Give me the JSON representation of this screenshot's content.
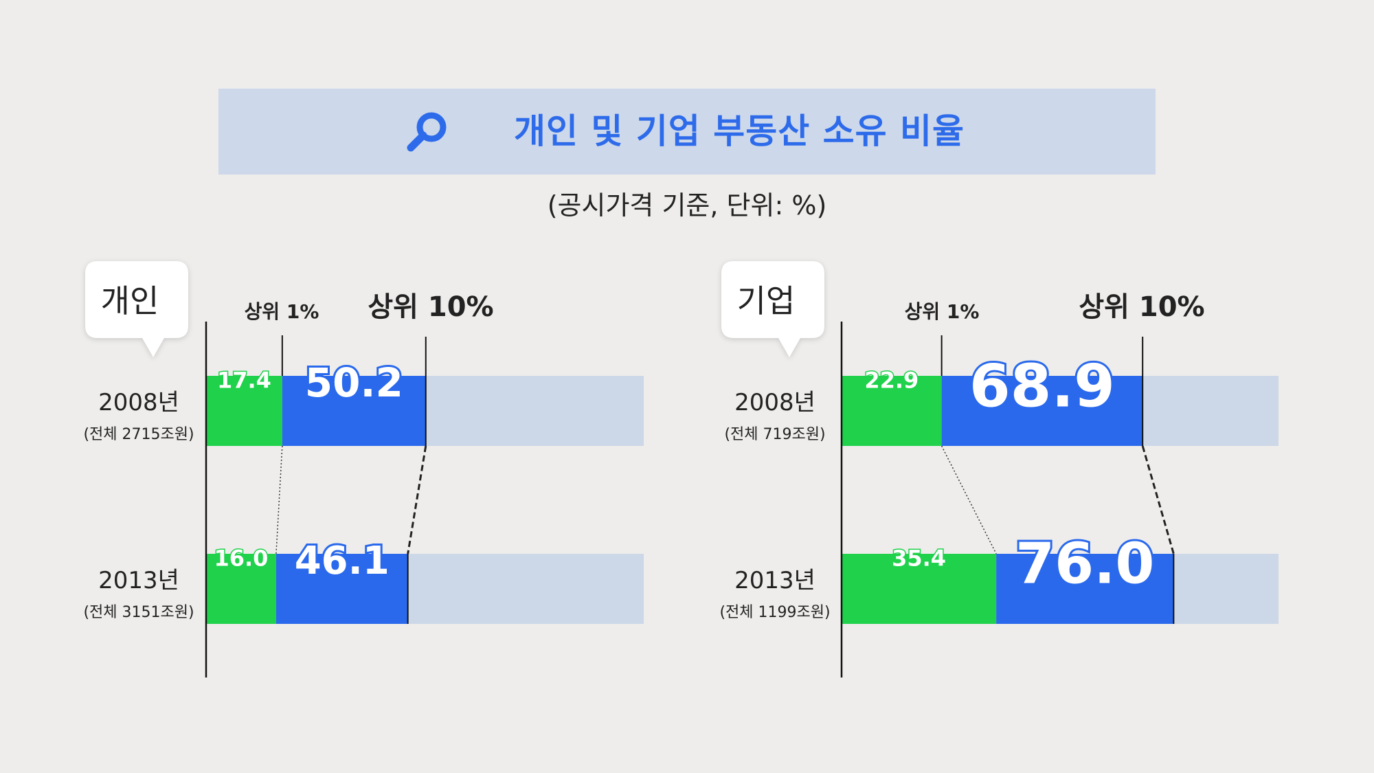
{
  "title": "개인 및 기업 부동산 소유 비율",
  "subtitle": "(공시가격 기준, 단위: %)",
  "icon": "search-icon",
  "colors": {
    "top1": "#1fd14b",
    "top10": "#2a69ec",
    "rest": "#ccd7e8",
    "title": "#2d6bea"
  },
  "chart_data": [
    {
      "type": "bar",
      "panel": "개인",
      "series": [
        {
          "name": "상위 1%",
          "values": [
            17.4,
            16.0
          ]
        },
        {
          "name": "상위 10%",
          "values": [
            50.2,
            46.1
          ]
        }
      ],
      "categories": [
        "2008년",
        "2013년"
      ],
      "category_notes": [
        "(전체 2715조원)",
        "(전체 3151조원)"
      ],
      "xlim": [
        0,
        100
      ]
    },
    {
      "type": "bar",
      "panel": "기업",
      "series": [
        {
          "name": "상위 1%",
          "values": [
            22.9,
            35.4
          ]
        },
        {
          "name": "상위 10%",
          "values": [
            68.9,
            76.0
          ]
        }
      ],
      "categories": [
        "2008년",
        "2013년"
      ],
      "category_notes": [
        "(전체 719조원)",
        "(전체 1199조원)"
      ],
      "xlim": [
        0,
        100
      ]
    }
  ]
}
